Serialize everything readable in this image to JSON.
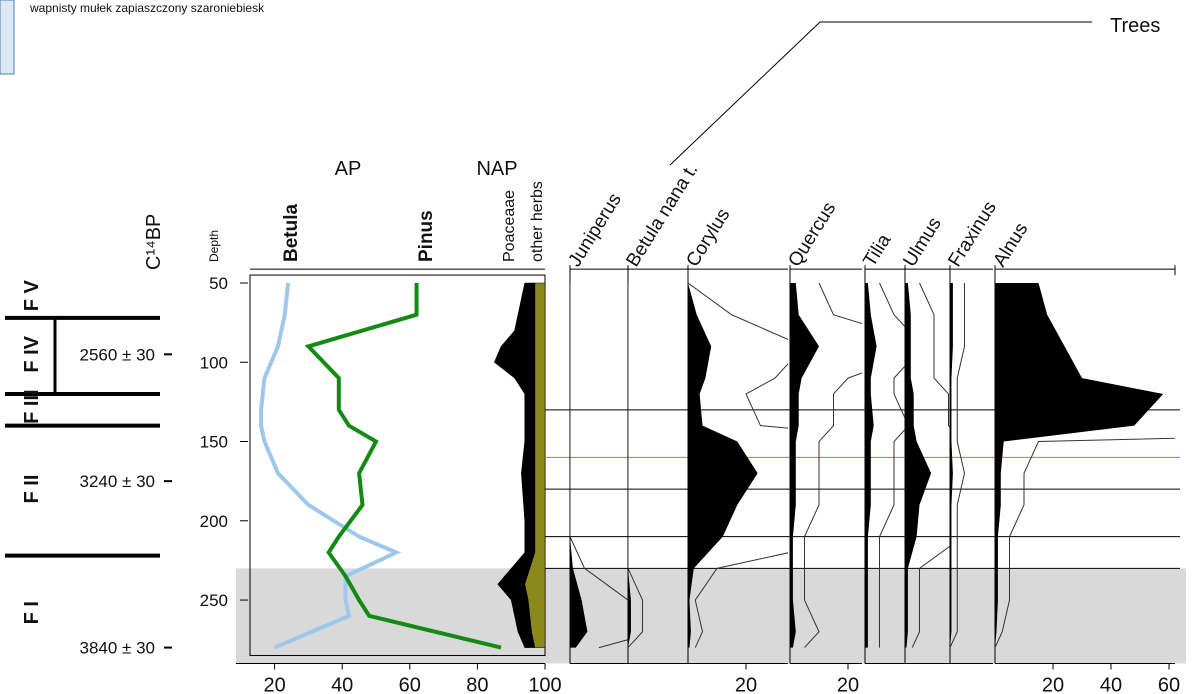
{
  "legend_text": "wapnisty mułek zapiaszczony szaroniebiesk",
  "chart_data": {
    "type": "pollen-diagram",
    "title_trees": "Trees",
    "title_ap": "AP",
    "title_nap": "NAP",
    "depth_label": "Depth",
    "age_label": "C¹⁴BP",
    "ylim": [
      45,
      285
    ],
    "yticks": [
      50,
      100,
      150,
      200,
      250
    ],
    "zones": [
      "F V",
      "F IV",
      "F III",
      "F II",
      "F I"
    ],
    "dates": [
      {
        "label": "2560 ± 30",
        "depth": 95
      },
      {
        "label": "3240 ± 30",
        "depth": 175
      },
      {
        "label": "3840 ± 30",
        "depth": 280
      }
    ],
    "ap": {
      "xlim": [
        0,
        100
      ],
      "xticks": [
        20,
        40,
        60,
        80,
        100
      ],
      "depths": [
        50,
        70,
        90,
        110,
        130,
        140,
        150,
        170,
        190,
        210,
        220,
        235,
        250,
        260,
        280
      ],
      "series": [
        {
          "name": "Betula",
          "color": "#9ec7ec",
          "values": [
            24,
            23,
            21,
            17,
            16,
            16,
            17,
            21,
            30,
            45,
            56,
            41,
            41,
            42,
            20
          ]
        },
        {
          "name": "Pinus",
          "color": "#138a13",
          "values": [
            62,
            62,
            30,
            39,
            39,
            42,
            50,
            45,
            46,
            39,
            36,
            41,
            45,
            48,
            87
          ]
        }
      ]
    },
    "nap": {
      "depths": [
        50,
        60,
        80,
        90,
        100,
        110,
        120,
        130,
        150,
        170,
        200,
        220,
        240,
        250,
        270,
        280
      ],
      "series": [
        {
          "name": "Poaceaae",
          "color": "#000000",
          "values": [
            3,
            4,
            6,
            10,
            12,
            6,
            3,
            3,
            3,
            4,
            3,
            3,
            8,
            5,
            4,
            3
          ]
        },
        {
          "name": "other herbs",
          "color": "#8a8a1c",
          "values": [
            3,
            3,
            3,
            3,
            3,
            3,
            3,
            3,
            3,
            3,
            3,
            3,
            6,
            5,
            4,
            3
          ]
        }
      ]
    },
    "taxa_depths": [
      50,
      70,
      90,
      110,
      120,
      140,
      150,
      170,
      190,
      210,
      230,
      250,
      270,
      280
    ],
    "exaggeration": 5,
    "taxa": [
      {
        "name": "Juniperus",
        "xticks": [],
        "values": [
          0,
          0,
          0,
          0,
          0,
          0,
          0,
          0,
          0,
          0,
          1,
          4,
          6,
          2
        ]
      },
      {
        "name": "Betula nana t.",
        "xticks": [],
        "values": [
          0,
          0,
          0,
          0,
          0,
          0,
          0,
          0,
          0,
          0,
          0,
          1,
          1,
          0
        ]
      },
      {
        "name": "Corylus",
        "xticks": [
          20
        ],
        "values": [
          0,
          3,
          8,
          6,
          4,
          5,
          17,
          24,
          17,
          12,
          2,
          0.5,
          1,
          0.5
        ]
      },
      {
        "name": "Quercus",
        "xticks": [
          20
        ],
        "values": [
          2,
          3,
          10,
          4,
          3,
          3,
          2,
          2,
          2,
          1,
          1,
          1,
          2,
          1
        ]
      },
      {
        "name": "Tilia",
        "xticks": [],
        "values": [
          1,
          2,
          4,
          2,
          2,
          3,
          2,
          2,
          2,
          1,
          1,
          1,
          1,
          1
        ]
      },
      {
        "name": "Ulmus",
        "xticks": [],
        "values": [
          1,
          2,
          2,
          2,
          3,
          3,
          4,
          9,
          5,
          4,
          1,
          1,
          1,
          0.5
        ]
      },
      {
        "name": "Fraxinus",
        "xticks": [],
        "values": [
          1,
          1,
          1,
          0.5,
          0.5,
          0.5,
          0.5,
          1,
          0.5,
          0.5,
          0.5,
          0.5,
          0.5,
          0
        ]
      },
      {
        "name": "Alnus",
        "xticks": [
          20,
          40,
          60
        ],
        "values": [
          15,
          18,
          24,
          30,
          58,
          48,
          3,
          2,
          2,
          1,
          1,
          1,
          0.5,
          0
        ]
      }
    ]
  }
}
